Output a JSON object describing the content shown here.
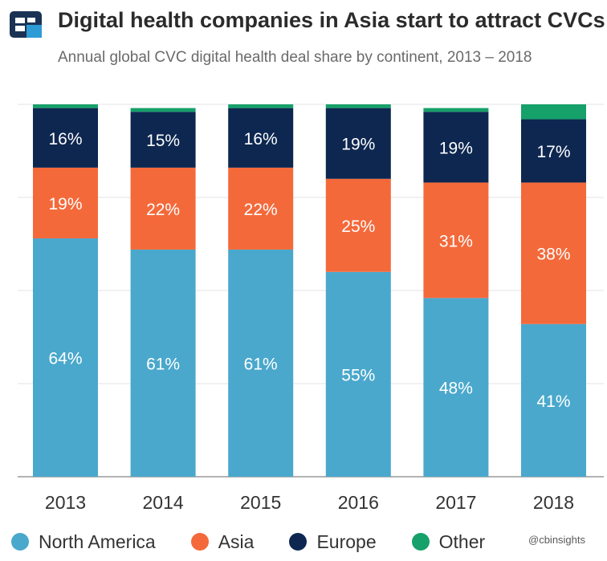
{
  "header": {
    "title": "Digital health companies in Asia start to attract CVCs",
    "subtitle": "Annual global CVC digital health deal share by continent, 2013 – 2018"
  },
  "brand": {
    "logo_icon": "cb-insights-logo-icon",
    "logo_colors": {
      "dark": "#1a3355",
      "accent": "#2d9bd6"
    },
    "credit": "@cbinsights"
  },
  "chart_data": {
    "type": "bar",
    "stacked": true,
    "categories": [
      "2013",
      "2014",
      "2015",
      "2016",
      "2017",
      "2018"
    ],
    "series": [
      {
        "name": "North America",
        "color": "#4aa8cc",
        "values": [
          64,
          61,
          61,
          55,
          48,
          41
        ],
        "labels": [
          "64%",
          "61%",
          "61%",
          "55%",
          "48%",
          "41%"
        ]
      },
      {
        "name": "Asia",
        "color": "#f4693a",
        "values": [
          19,
          22,
          22,
          25,
          31,
          38
        ],
        "labels": [
          "19%",
          "22%",
          "22%",
          "25%",
          "31%",
          "38%"
        ]
      },
      {
        "name": "Europe",
        "color": "#0d2750",
        "values": [
          16,
          15,
          16,
          19,
          19,
          17
        ],
        "labels": [
          "16%",
          "15%",
          "16%",
          "19%",
          "19%",
          "17%"
        ]
      },
      {
        "name": "Other",
        "color": "#16a06a",
        "values": [
          1,
          1,
          1,
          1,
          1,
          4
        ],
        "labels": [
          "",
          "",
          "",
          "",
          "",
          ""
        ]
      }
    ],
    "ylim": [
      0,
      100
    ],
    "grid": true,
    "legend_position": "bottom"
  }
}
